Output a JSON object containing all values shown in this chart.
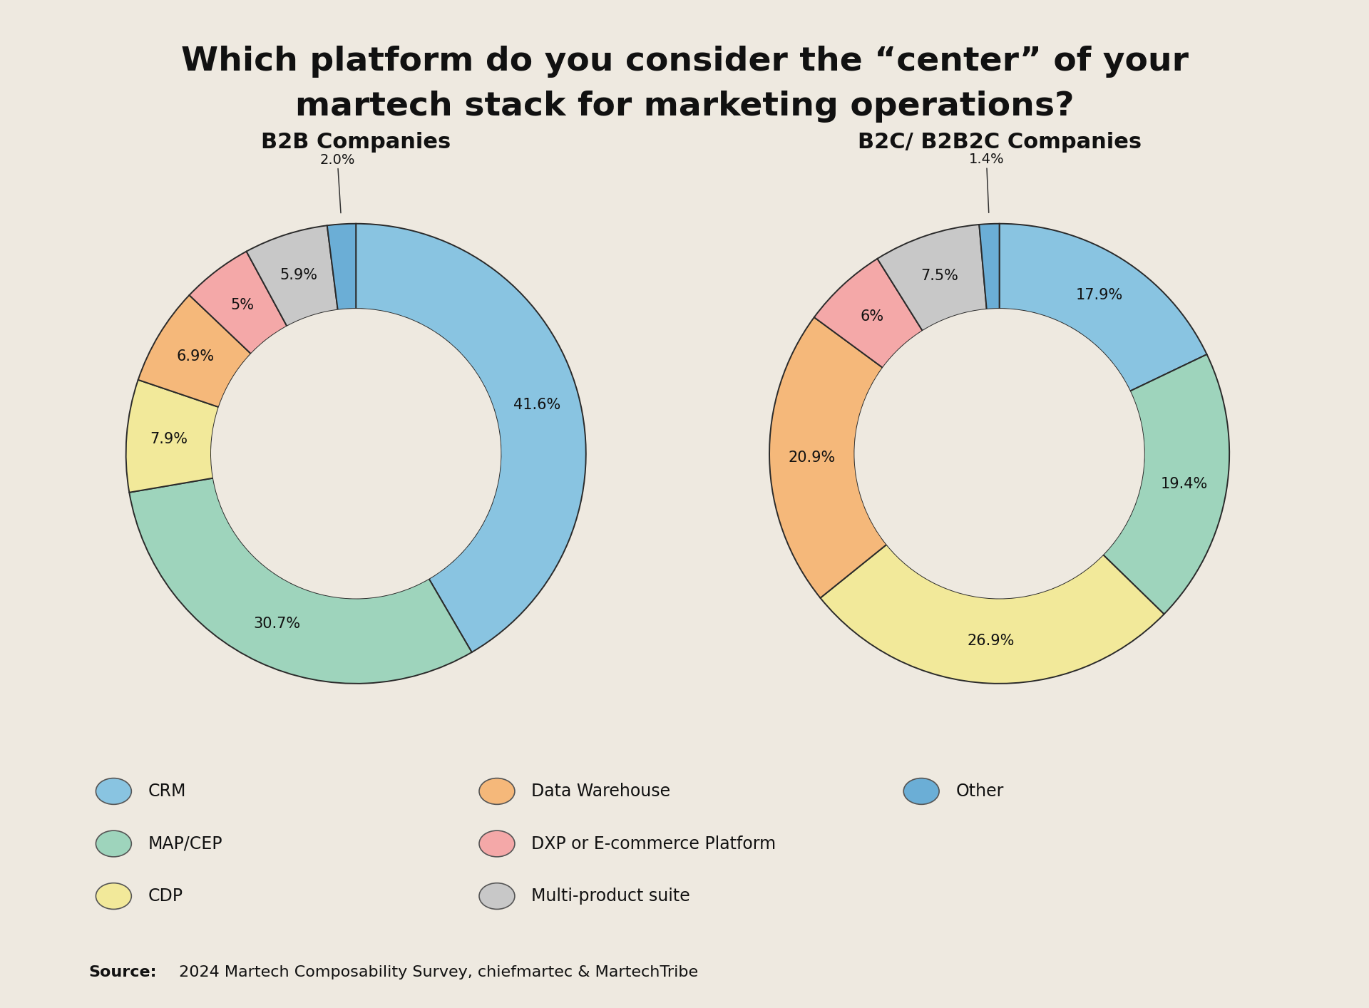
{
  "title_line1": "Which platform do you consider the “center” of your",
  "title_line2": "martech stack for marketing operations?",
  "background_color": "#EEE9E0",
  "b2b_title": "B2B Companies",
  "b2c_title": "B2C/ B2B2C Companies",
  "b2b_values": [
    41.6,
    30.7,
    7.9,
    6.9,
    5.0,
    5.9,
    2.0
  ],
  "b2b_labels": [
    "41.6%",
    "30.7%",
    "7.9%",
    "6.9%",
    "5%",
    "5.9%",
    "2.0%"
  ],
  "b2c_values": [
    17.9,
    19.4,
    26.9,
    20.9,
    6.0,
    7.5,
    1.4
  ],
  "b2c_labels": [
    "17.9%",
    "19.4%",
    "26.9%",
    "20.9%",
    "6%",
    "7.5%",
    "1.4%"
  ],
  "colors": [
    "#89C4E1",
    "#9ED4BC",
    "#F2E99A",
    "#F5B87A",
    "#F4A8A8",
    "#C8C8C8",
    "#6BAED6"
  ],
  "legend_labels": [
    "CRM",
    "MAP/CEP",
    "CDP",
    "Data Warehouse",
    "DXP or E-commerce Platform",
    "Multi-product suite",
    "Other"
  ],
  "source_bold": "Source:",
  "source_rest": " 2024 Martech Composability Survey, chiefmartec & MartechTribe",
  "donut_width": 0.37
}
